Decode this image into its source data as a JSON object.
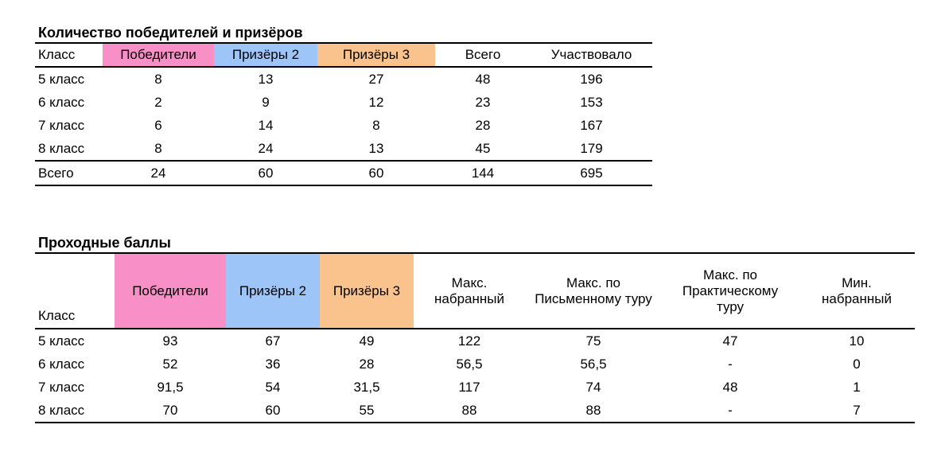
{
  "colors": {
    "winner_bg": "#F98FC7",
    "prize2_bg": "#9DC5F8",
    "prize3_bg": "#FAC38D",
    "rule": "#000000"
  },
  "table1": {
    "title": "Количество победителей и призёров",
    "columns": [
      "Класс",
      "Победители",
      "Призёры 2",
      "Призёры 3",
      "Всего",
      "Участвовало"
    ],
    "rows": [
      {
        "label": "5 класс",
        "values": [
          "8",
          "13",
          "27",
          "48",
          "196"
        ]
      },
      {
        "label": "6 класс",
        "values": [
          "2",
          "9",
          "12",
          "23",
          "153"
        ]
      },
      {
        "label": "7 класс",
        "values": [
          "6",
          "14",
          "8",
          "28",
          "167"
        ]
      },
      {
        "label": "8 класс",
        "values": [
          "8",
          "24",
          "13",
          "45",
          "179"
        ]
      }
    ],
    "total_row": {
      "label": "Всего",
      "values": [
        "24",
        "60",
        "60",
        "144",
        "695"
      ]
    }
  },
  "table2": {
    "title": "Проходные баллы",
    "columns": [
      "Класс",
      "Победители",
      "Призёры 2",
      "Призёры 3",
      "Макс. набранный",
      "Макс. по Письменному туру",
      "Макс. по Практическому туру",
      "Мин. набранный"
    ],
    "rows": [
      {
        "label": "5 класс",
        "values": [
          "93",
          "67",
          "49",
          "122",
          "75",
          "47",
          "10"
        ]
      },
      {
        "label": "6 класс",
        "values": [
          "52",
          "36",
          "28",
          "56,5",
          "56,5",
          "-",
          "0"
        ]
      },
      {
        "label": "7 класс",
        "values": [
          "91,5",
          "54",
          "31,5",
          "117",
          "74",
          "48",
          "1"
        ]
      },
      {
        "label": "8 класс",
        "values": [
          "70",
          "60",
          "55",
          "88",
          "88",
          "-",
          "7"
        ]
      }
    ]
  }
}
